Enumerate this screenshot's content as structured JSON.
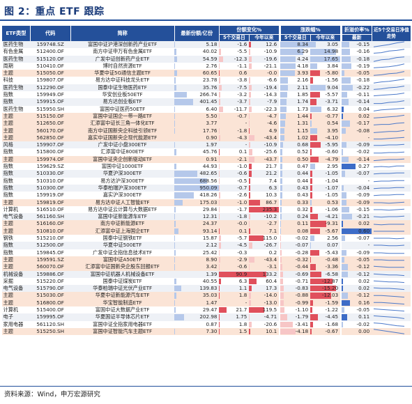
{
  "title": "图 2：重点 ETF 跟踪",
  "source": "资料来源：Wind，申万宏源研究",
  "headers": {
    "category": "ETF类型",
    "code": "代码",
    "name": "简称",
    "share": "最新份额/亿份",
    "share_change": "份额变化%",
    "price_change": "涨跌幅%",
    "discount": "折溢价率%",
    "trend": "近5个交易日净值走势",
    "sub_5d": "5个交易日",
    "sub_ytd": "今年以来",
    "sub_latest": "最新"
  },
  "colors": {
    "header": "#24509a",
    "red": "#e0505c",
    "pink": "#f7c6c6",
    "blue": "#3d6cc7",
    "lightblue": "#b5c8ea",
    "highlight": "#fbe4d6",
    "spark": "#4a78c9"
  },
  "rows": [
    {
      "cat": "医药生物",
      "code": "159748.SZ",
      "name": "富国中证沪港深创新药产业ETF",
      "share": "5.18",
      "s5": "-1.6",
      "sy": "12.6",
      "p5": "8.34",
      "py": "3.05",
      "dc": "-0.15",
      "hl": false,
      "share_v": 5.18,
      "s5_v": -1.6,
      "sy_v": 12.6,
      "p5_v": 8.34,
      "py_v": 3.05,
      "dc_v": -0.15,
      "spark": [
        0.1,
        0.3,
        0.5,
        0.8,
        1.0
      ]
    },
    {
      "cat": "有色金属",
      "code": "512400.OF",
      "name": "南方中证申万有色金属ETF",
      "share": "40.02",
      "s5": "-5.5",
      "sy": "-10.9",
      "p5": "6.29",
      "py": "14.98",
      "dc": "-0.16",
      "hl": false,
      "share_v": 40.02,
      "s5_v": -5.5,
      "sy_v": -10.9,
      "p5_v": 6.29,
      "py_v": 14.98,
      "dc_v": -0.16,
      "spark": [
        0.2,
        0.3,
        0.6,
        0.7,
        0.9
      ]
    },
    {
      "cat": "医药生物",
      "code": "515120.OF",
      "name": "广发中证创新药产业ETF",
      "share": "54.59",
      "s5": "-12.3",
      "sy": "-19.6",
      "p5": "4.24",
      "py": "17.65",
      "dc": "-0.18",
      "hl": false,
      "share_v": 54.59,
      "s5_v": -12.3,
      "sy_v": -19.6,
      "p5_v": 4.24,
      "py_v": 17.65,
      "dc_v": -0.18,
      "spark": [
        0.1,
        0.4,
        0.5,
        0.8,
        0.9
      ]
    },
    {
      "cat": "周期",
      "code": "510410.OF",
      "name": "博时自然资源ETF",
      "share": "2.76",
      "s5": "-1.1",
      "sy": "-21.1",
      "p5": "4.18",
      "py": "3.84",
      "dc": "-0.19",
      "hl": false,
      "share_v": 2.76,
      "s5_v": -1.1,
      "sy_v": -21.1,
      "p5_v": 4.18,
      "py_v": 3.84,
      "dc_v": -0.19,
      "spark": [
        0.2,
        0.3,
        0.4,
        0.6,
        0.9
      ]
    },
    {
      "cat": "主题",
      "code": "515050.OF",
      "name": "华夏中证5G通信主题ETF",
      "share": "60.65",
      "s5": "0.6",
      "sy": "-0.0",
      "p5": "3.93",
      "py": "-5.80",
      "dc": "-0.05",
      "hl": true,
      "share_v": 60.65,
      "s5_v": 0.6,
      "sy_v": -0.0,
      "p5_v": 3.93,
      "py_v": -5.8,
      "dc_v": -0.05,
      "spark": [
        0.1,
        0.2,
        0.4,
        0.5,
        0.8
      ]
    },
    {
      "cat": "科技",
      "code": "159807.OF",
      "name": "易方达中证科技龙头ETF",
      "share": "23.78",
      "s5": "-3.8",
      "sy": "-6.6",
      "p5": "2.16",
      "py": "-1.56",
      "dc": "-0.18",
      "hl": false,
      "share_v": 23.78,
      "s5_v": -3.8,
      "sy_v": -6.6,
      "p5_v": 2.16,
      "py_v": -1.56,
      "dc_v": -0.18,
      "spark": [
        0.1,
        0.3,
        0.4,
        0.6,
        0.8
      ]
    },
    {
      "cat": "医药生物",
      "code": "512290.OF",
      "name": "国泰中证生物医药ETF",
      "share": "35.76",
      "s5": "-7.5",
      "sy": "-19.4",
      "p5": "2.11",
      "py": "9.04",
      "dc": "-0.22",
      "hl": false,
      "share_v": 35.76,
      "s5_v": -7.5,
      "sy_v": -19.4,
      "p5_v": 2.11,
      "py_v": 9.04,
      "dc_v": -0.22,
      "spark": [
        0.2,
        0.3,
        0.5,
        0.6,
        0.8
      ]
    },
    {
      "cat": "指数",
      "code": "159949.OF",
      "name": "华安创业板50ETF",
      "share": "266.74",
      "s5": "-3.2",
      "sy": "-14.3",
      "p5": "1.85",
      "py": "-5.57",
      "dc": "-0.11",
      "hl": false,
      "share_v": 266.74,
      "s5_v": -3.2,
      "sy_v": -14.3,
      "p5_v": 1.85,
      "py_v": -5.57,
      "dc_v": -0.11,
      "spark": [
        0.3,
        0.4,
        0.5,
        0.6,
        0.8
      ]
    },
    {
      "cat": "指数",
      "code": "159915.OF",
      "name": "易方达创业板ETF",
      "share": "401.45",
      "s5": "-3.7",
      "sy": "-7.9",
      "p5": "1.74",
      "py": "-3.71",
      "dc": "-0.14",
      "hl": false,
      "share_v": 401.45,
      "s5_v": -3.7,
      "sy_v": -7.9,
      "p5_v": 1.74,
      "py_v": -3.71,
      "dc_v": -0.14,
      "spark": [
        0.3,
        0.3,
        0.5,
        0.6,
        0.8
      ]
    },
    {
      "cat": "医药生物",
      "code": "515950.SH",
      "name": "富国中证医药50ETF",
      "share": "6.40",
      "s5": "-11.7",
      "sy": "-22.3",
      "p5": "1.73",
      "py": "6.32",
      "dc": "0.04",
      "hl": false,
      "share_v": 6.4,
      "s5_v": -11.7,
      "sy_v": -22.3,
      "p5_v": 1.73,
      "py_v": 6.32,
      "dc_v": 0.04,
      "spark": [
        0.2,
        0.4,
        0.5,
        0.6,
        0.7
      ]
    },
    {
      "cat": "主题",
      "code": "515150.OF",
      "name": "富国中证国企一带一路ETF",
      "share": "5.50",
      "s5": "-0.7",
      "sy": "-4.7",
      "p5": "1.44",
      "py": "-0.77",
      "dc": "0.02",
      "hl": true,
      "share_v": 5.5,
      "s5_v": -0.7,
      "sy_v": -4.7,
      "p5_v": 1.44,
      "py_v": -0.77,
      "dc_v": 0.02,
      "spark": [
        0.2,
        0.3,
        0.4,
        0.5,
        0.7
      ]
    },
    {
      "cat": "主题",
      "code": "512650.OF",
      "name": "汇添富中证长三角一体化ETF",
      "share": "3.77",
      "s5": "-",
      "sy": "-4.6",
      "p5": "1.31",
      "py": "0.54",
      "dc": "-0.17",
      "hl": true,
      "share_v": 3.77,
      "s5_v": 0,
      "sy_v": -4.6,
      "p5_v": 1.31,
      "py_v": 0.54,
      "dc_v": -0.17,
      "spark": [
        0.2,
        0.3,
        0.3,
        0.5,
        0.6
      ]
    },
    {
      "cat": "主题",
      "code": "560170.OF",
      "name": "南方中证国新央企科技引领ETF",
      "share": "17.76",
      "s5": "-1.8",
      "sy": "4.9",
      "p5": "1.15",
      "py": "3.95",
      "dc": "-0.08",
      "hl": true,
      "share_v": 17.76,
      "s5_v": -1.8,
      "sy_v": 4.9,
      "p5_v": 1.15,
      "py_v": 3.95,
      "dc_v": -0.08,
      "spark": [
        0.2,
        0.3,
        0.4,
        0.4,
        0.6
      ]
    },
    {
      "cat": "主题",
      "code": "562850.OF",
      "name": "嘉实中证国新央企现代能源ETF",
      "share": "0.90",
      "s5": "-4.3",
      "sy": "-43.4",
      "p5": "1.02",
      "py": "-4.10",
      "dc": "-",
      "hl": true,
      "share_v": 0.9,
      "s5_v": -4.3,
      "sy_v": -43.4,
      "p5_v": 1.02,
      "py_v": -4.1,
      "dc_v": 0,
      "spark": [
        0.3,
        0.3,
        0.4,
        0.5,
        0.6
      ]
    },
    {
      "cat": "风格",
      "code": "159907.OF",
      "name": "广发中证小盘300ETF",
      "share": "1.97",
      "s5": "-",
      "sy": "-10.9",
      "p5": "0.68",
      "py": "-5.95",
      "dc": "-0.09",
      "hl": false,
      "share_v": 1.97,
      "s5_v": 0,
      "sy_v": -10.9,
      "p5_v": 0.68,
      "py_v": -5.95,
      "dc_v": -0.09,
      "spark": [
        0.4,
        0.4,
        0.5,
        0.5,
        0.6
      ]
    },
    {
      "cat": "指数",
      "code": "515800.OF",
      "name": "汇添富中证800ETF",
      "share": "45.76",
      "s5": "0.1",
      "sy": "-25.6",
      "p5": "0.52",
      "py": "-0.60",
      "dc": "-0.02",
      "hl": false,
      "share_v": 45.76,
      "s5_v": 0.1,
      "sy_v": -25.6,
      "p5_v": 0.52,
      "py_v": -0.6,
      "dc_v": -0.02,
      "spark": [
        0.4,
        0.4,
        0.5,
        0.5,
        0.6
      ]
    },
    {
      "cat": "主题",
      "code": "159974.OF",
      "name": "富国中证央企创新驱动ETF",
      "share": "0.91",
      "s5": "-2.1",
      "sy": "-43.7",
      "p5": "0.50",
      "py": "-4.79",
      "dc": "-0.14",
      "hl": true,
      "share_v": 0.91,
      "s5_v": -2.1,
      "sy_v": -43.7,
      "p5_v": 0.5,
      "py_v": -4.79,
      "dc_v": -0.14,
      "spark": [
        0.3,
        0.4,
        0.5,
        0.5,
        0.6
      ]
    },
    {
      "cat": "指数",
      "code": "159629.SZ",
      "name": "富国中证1000ETF",
      "share": "44.93",
      "s5": "-1.0",
      "sy": "21.7",
      "p5": "0.47",
      "py": "2.95",
      "dc": "0.27",
      "hl": false,
      "share_v": 44.93,
      "s5_v": -1.0,
      "sy_v": 21.7,
      "p5_v": 0.47,
      "py_v": 2.95,
      "dc_v": 0.27,
      "spark": [
        0.4,
        0.5,
        0.4,
        0.6,
        0.6
      ]
    },
    {
      "cat": "指数",
      "code": "510330.OF",
      "name": "华夏沪深300ETF",
      "share": "482.65",
      "s5": "-0.6",
      "sy": "21.2",
      "p5": "0.44",
      "py": "-1.05",
      "dc": "-0.07",
      "hl": false,
      "share_v": 482.65,
      "s5_v": -0.6,
      "sy_v": 21.2,
      "p5_v": 0.44,
      "py_v": -1.05,
      "dc_v": -0.07,
      "spark": [
        0.4,
        0.5,
        0.5,
        0.6,
        0.6
      ]
    },
    {
      "cat": "指数",
      "code": "510310.OF",
      "name": "易方达沪深300ETF",
      "share": "688.56",
      "s5": "-0.5",
      "sy": "7.4",
      "p5": "0.44",
      "py": "-1.04",
      "dc": "-",
      "hl": false,
      "share_v": 688.56,
      "s5_v": -0.5,
      "sy_v": 7.4,
      "p5_v": 0.44,
      "py_v": -1.04,
      "dc_v": 0,
      "spark": [
        0.4,
        0.5,
        0.5,
        0.6,
        0.6
      ]
    },
    {
      "cat": "指数",
      "code": "510300.OF",
      "name": "华泰柏瑞沪深300ETF",
      "share": "950.09",
      "s5": "-0.7",
      "sy": "6.3",
      "p5": "0.43",
      "py": "-1.07",
      "dc": "-0.04",
      "hl": false,
      "share_v": 950.09,
      "s5_v": -0.7,
      "sy_v": 6.3,
      "p5_v": 0.43,
      "py_v": -1.07,
      "dc_v": -0.04,
      "spark": [
        0.4,
        0.5,
        0.5,
        0.6,
        0.6
      ]
    },
    {
      "cat": "指数",
      "code": "159919.OF",
      "name": "嘉实沪深300ETF",
      "share": "418.26",
      "s5": "-2.6",
      "sy": "10.3",
      "p5": "0.43",
      "py": "-1.05",
      "dc": "-0.09",
      "hl": false,
      "share_v": 418.26,
      "s5_v": -2.6,
      "sy_v": 10.3,
      "p5_v": 0.43,
      "py_v": -1.05,
      "dc_v": -0.09,
      "spark": [
        0.4,
        0.5,
        0.5,
        0.6,
        0.6
      ]
    },
    {
      "cat": "主题",
      "code": "159819.OF",
      "name": "易方达中证人工智能ETF",
      "share": "175.03",
      "s5": "-1.0",
      "sy": "86.7",
      "p5": "0.33",
      "py": "0.53",
      "dc": "-0.09",
      "hl": true,
      "share_v": 175.03,
      "s5_v": -1.0,
      "sy_v": 86.7,
      "p5_v": 0.33,
      "py_v": 0.53,
      "dc_v": -0.09,
      "spark": [
        0.5,
        0.5,
        0.4,
        0.5,
        0.6
      ]
    },
    {
      "cat": "计算机",
      "code": "516510.OF",
      "name": "易方达中证云计算与大数据ETF",
      "share": "29.84",
      "s5": "-1.7",
      "sy": "235.3",
      "p5": "0.32",
      "py": "-1.06",
      "dc": "-0.15",
      "hl": false,
      "share_v": 29.84,
      "s5_v": -1.7,
      "sy_v": 235.3,
      "p5_v": 0.32,
      "py_v": -1.06,
      "dc_v": -0.15,
      "spark": [
        0.5,
        0.5,
        0.4,
        0.5,
        0.6
      ]
    },
    {
      "cat": "电气设备",
      "code": "561160.SH",
      "name": "富国中证新能源车ETF",
      "share": "12.31",
      "s5": "-1.8",
      "sy": "-10.2",
      "p5": "0.24",
      "py": "-4.21",
      "dc": "-0.21",
      "hl": false,
      "share_v": 12.31,
      "s5_v": -1.8,
      "sy_v": -10.2,
      "p5_v": 0.24,
      "py_v": -4.21,
      "dc_v": -0.21,
      "spark": [
        0.5,
        0.4,
        0.5,
        0.5,
        0.6
      ]
    },
    {
      "cat": "主题",
      "code": "516160.OF",
      "name": "南方中证新能源ETF",
      "share": "24.37",
      "s5": "-0.0",
      "sy": "-2.7",
      "p5": "0.11",
      "py": "-9.31",
      "dc": "0.02",
      "hl": true,
      "share_v": 24.37,
      "s5_v": -0.0,
      "sy_v": -2.7,
      "p5_v": 0.11,
      "py_v": -9.31,
      "dc_v": 0.02,
      "spark": [
        0.5,
        0.4,
        0.5,
        0.5,
        0.5
      ]
    },
    {
      "cat": "主题",
      "code": "510810.OF",
      "name": "汇添富中证上海国企ETF",
      "share": "93.14",
      "s5": "0.1",
      "sy": "7.1",
      "p5": "0.08",
      "py": "-5.67",
      "dc": "0.60",
      "hl": true,
      "share_v": 93.14,
      "s5_v": 0.1,
      "sy_v": 7.1,
      "p5_v": 0.08,
      "py_v": -5.67,
      "dc_v": 0.6,
      "spark": [
        0.5,
        0.5,
        0.5,
        0.5,
        0.5
      ]
    },
    {
      "cat": "钢铁",
      "code": "515210.OF",
      "name": "国泰中证钢铁ETF",
      "share": "15.87",
      "s5": "-5.7",
      "sy": "115.0",
      "p5": "-0.02",
      "py": "2.56",
      "dc": "-0.07",
      "hl": false,
      "share_v": 15.87,
      "s5_v": -5.7,
      "sy_v": 115.0,
      "p5_v": -0.02,
      "py_v": 2.56,
      "dc_v": -0.07,
      "spark": [
        0.5,
        0.5,
        0.5,
        0.4,
        0.5
      ]
    },
    {
      "cat": "指数",
      "code": "512500.OF",
      "name": "华夏中证500ETF",
      "share": "2.12",
      "s5": "-4.5",
      "sy": "-26.7",
      "p5": "-0.07",
      "py": "0.07",
      "dc": "-",
      "hl": false,
      "share_v": 2.12,
      "s5_v": -4.5,
      "sy_v": -26.7,
      "p5_v": -0.07,
      "py_v": 0.07,
      "dc_v": 0,
      "spark": [
        0.5,
        0.5,
        0.4,
        0.4,
        0.5
      ]
    },
    {
      "cat": "指数",
      "code": "159845.OF",
      "name": "广发中证全指信息技术ETF",
      "share": "25.42",
      "s5": "-0.3",
      "sy": "0.2",
      "p5": "-0.28",
      "py": "-5.43",
      "dc": "-0.09",
      "hl": false,
      "share_v": 25.42,
      "s5_v": -0.3,
      "sy_v": 0.2,
      "p5_v": -0.28,
      "py_v": -5.43,
      "dc_v": -0.09,
      "spark": [
        0.5,
        0.5,
        0.4,
        0.4,
        0.4
      ]
    },
    {
      "cat": "主题",
      "code": "159591.SZ",
      "name": "富国中证A50ETF",
      "share": "8.90",
      "s5": "-2.9",
      "sy": "-43.4",
      "p5": "-0.32",
      "py": "-0.48",
      "dc": "-0.05",
      "hl": true,
      "share_v": 8.9,
      "s5_v": -2.9,
      "sy_v": -43.4,
      "p5_v": -0.32,
      "py_v": -0.48,
      "dc_v": -0.05,
      "spark": [
        0.5,
        0.5,
        0.4,
        0.4,
        0.4
      ]
    },
    {
      "cat": "主题",
      "code": "560070.OF",
      "name": "汇添富中证国新央企股东回报ETF",
      "share": "3.42",
      "s5": "-0.6",
      "sy": "-3.1",
      "p5": "-0.44",
      "py": "-3.36",
      "dc": "-0.12",
      "hl": true,
      "share_v": 3.42,
      "s5_v": -0.6,
      "sy_v": -3.1,
      "p5_v": -0.44,
      "py_v": -3.36,
      "dc_v": -0.12,
      "spark": [
        0.6,
        0.5,
        0.4,
        0.4,
        0.4
      ]
    },
    {
      "cat": "机械设备",
      "code": "159886.OF",
      "name": "富国中证机器人机械设备ETF",
      "share": "1.39",
      "s5": "90.9",
      "sy": "133.2",
      "p5": "-0.69",
      "py": "-6.58",
      "dc": "-0.12",
      "hl": false,
      "share_v": 1.39,
      "s5_v": 90.9,
      "sy_v": 133.2,
      "p5_v": -0.69,
      "py_v": -6.58,
      "dc_v": -0.12,
      "spark": [
        0.6,
        0.5,
        0.4,
        0.4,
        0.3
      ]
    },
    {
      "cat": "采掘",
      "code": "515220.OF",
      "name": "国泰中证煤炭ETF",
      "share": "40.55",
      "s5": "6.3",
      "sy": "60.4",
      "p5": "-0.71",
      "py": "-12.87",
      "dc": "0.02",
      "hl": false,
      "share_v": 40.55,
      "s5_v": 6.3,
      "sy_v": 60.4,
      "p5_v": -0.71,
      "py_v": -12.87,
      "dc_v": 0.02,
      "spark": [
        0.6,
        0.5,
        0.4,
        0.4,
        0.3
      ]
    },
    {
      "cat": "电气设备",
      "code": "515790.OF",
      "name": "华泰柏瑞中证光伏产业ETF",
      "share": "139.83",
      "s5": "1.1",
      "sy": "17.3",
      "p5": "-0.83",
      "py": "-15.20",
      "dc": "0.02",
      "hl": false,
      "share_v": 139.83,
      "s5_v": 1.1,
      "sy_v": 17.3,
      "p5_v": -0.83,
      "py_v": -15.2,
      "dc_v": 0.02,
      "spark": [
        0.6,
        0.5,
        0.5,
        0.4,
        0.3
      ]
    },
    {
      "cat": "主题",
      "code": "515030.OF",
      "name": "华夏中证新能源汽车ETF",
      "share": "35.03",
      "s5": "1.8",
      "sy": "-14.0",
      "p5": "-0.88",
      "py": "-12.03",
      "dc": "-0.12",
      "hl": true,
      "share_v": 35.03,
      "s5_v": 1.8,
      "sy_v": -14.0,
      "p5_v": -0.88,
      "py_v": -12.03,
      "dc_v": -0.12,
      "spark": [
        0.6,
        0.6,
        0.5,
        0.4,
        0.3
      ]
    },
    {
      "cat": "主题",
      "code": "516800.OF",
      "name": "华宝智能制造ETF",
      "share": "1.47",
      "s5": "-",
      "sy": "-13.0",
      "p5": "-0.99",
      "py": "-1.59",
      "dc": "0.16",
      "hl": true,
      "share_v": 1.47,
      "s5_v": 0,
      "sy_v": -13.0,
      "p5_v": -0.99,
      "py_v": -1.59,
      "dc_v": 0.16,
      "spark": [
        0.6,
        0.6,
        0.5,
        0.4,
        0.3
      ]
    },
    {
      "cat": "计算机",
      "code": "515400.OF",
      "name": "富国中证大数据产业ETF",
      "share": "29.47",
      "s5": "21.7",
      "sy": "119.5",
      "p5": "-1.10",
      "py": "-1.22",
      "dc": "-0.05",
      "hl": false,
      "share_v": 29.47,
      "s5_v": 21.7,
      "sy_v": 119.5,
      "p5_v": -1.1,
      "py_v": -1.22,
      "dc_v": -0.05,
      "spark": [
        0.7,
        0.6,
        0.5,
        0.4,
        0.3
      ]
    },
    {
      "cat": "电子",
      "code": "159995.OF",
      "name": "华夏国证半导体芯片ETF",
      "share": "202.98",
      "s5": "1.75",
      "sy": "-4.71",
      "p5": "-1.79",
      "py": "-4.45",
      "dc": "0.11",
      "hl": false,
      "share_v": 202.98,
      "s5_v": 1.75,
      "sy_v": -4.71,
      "p5_v": -1.79,
      "py_v": -4.45,
      "dc_v": 0.11,
      "spark": [
        0.7,
        0.6,
        0.5,
        0.4,
        0.2
      ]
    },
    {
      "cat": "家用电器",
      "code": "561120.SH",
      "name": "富国中证全指家用电器ETF",
      "share": "0.87",
      "s5": "1.8",
      "sy": "-20.6",
      "p5": "-3.41",
      "py": "-1.68",
      "dc": "-0.02",
      "hl": false,
      "share_v": 0.87,
      "s5_v": 1.8,
      "sy_v": -20.6,
      "p5_v": -3.41,
      "py_v": -1.68,
      "dc_v": -0.02,
      "spark": [
        0.8,
        0.7,
        0.5,
        0.3,
        0.2
      ]
    },
    {
      "cat": "主题",
      "code": "515250.SH",
      "name": "富国中证智能汽车主题ETF",
      "share": "7.30",
      "s5": "1.5",
      "sy": "10.1",
      "p5": "-4.18",
      "py": "-0.67",
      "dc": "0.00",
      "hl": true,
      "share_v": 7.3,
      "s5_v": 1.5,
      "sy_v": 10.1,
      "p5_v": -4.18,
      "py_v": -0.67,
      "dc_v": 0.0,
      "spark": [
        0.9,
        0.7,
        0.5,
        0.3,
        0.1
      ]
    }
  ]
}
